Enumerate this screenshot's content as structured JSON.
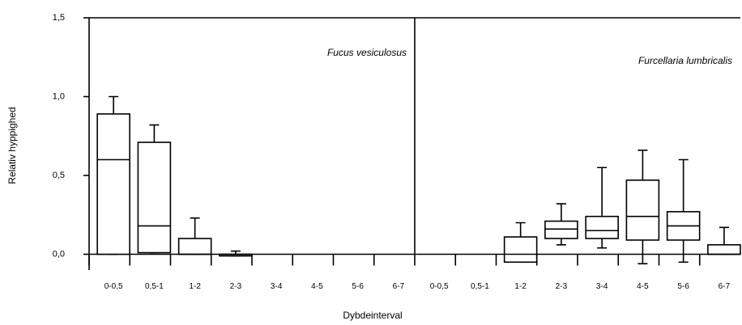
{
  "chart_data": {
    "type": "box",
    "ylabel": "Relativ hyppighed",
    "xlabel": "Dybdeinterval",
    "ylim": [
      -0.1,
      1.5
    ],
    "yticks": [
      {
        "value": 0,
        "label": "0,0"
      },
      {
        "value": 0.5,
        "label": "0,5"
      },
      {
        "value": 1,
        "label": "1,0"
      },
      {
        "value": 1.5,
        "label": "1,5"
      }
    ],
    "color": "#000000",
    "panels": [
      {
        "title": "Fucus vesiculosus",
        "categories": [
          "0-0,5",
          "0,5-1",
          "1-2",
          "2-3",
          "3-4",
          "4-5",
          "5-6",
          "6-7"
        ],
        "min": [
          0,
          0.01,
          0,
          -0.01,
          null,
          null,
          null,
          null
        ],
        "q1": [
          0,
          0.01,
          0,
          -0.01,
          null,
          null,
          null,
          null
        ],
        "median": [
          0.6,
          0.18,
          0,
          -0.01,
          null,
          null,
          null,
          null
        ],
        "q3": [
          0.89,
          0.71,
          0.1,
          0,
          null,
          null,
          null,
          null
        ],
        "max": [
          1.0,
          0.82,
          0.23,
          0.02,
          null,
          null,
          null,
          null
        ]
      },
      {
        "title": "Furcellaria lumbricalis",
        "categories": [
          "0-0,5",
          "0,5-1",
          "1-2",
          "2-3",
          "3-4",
          "4-5",
          "5-6",
          "6-7"
        ],
        "min": [
          null,
          null,
          -0.05,
          0.06,
          0.04,
          -0.06,
          -0.05,
          0
        ],
        "q1": [
          null,
          null,
          -0.05,
          0.1,
          0.1,
          0.09,
          0.09,
          0
        ],
        "median": [
          null,
          null,
          0,
          0.16,
          0.15,
          0.24,
          0.18,
          0
        ],
        "q3": [
          null,
          null,
          0.11,
          0.21,
          0.24,
          0.47,
          0.27,
          0.06
        ],
        "max": [
          null,
          null,
          0.2,
          0.32,
          0.55,
          0.66,
          0.6,
          0.17
        ]
      }
    ]
  }
}
